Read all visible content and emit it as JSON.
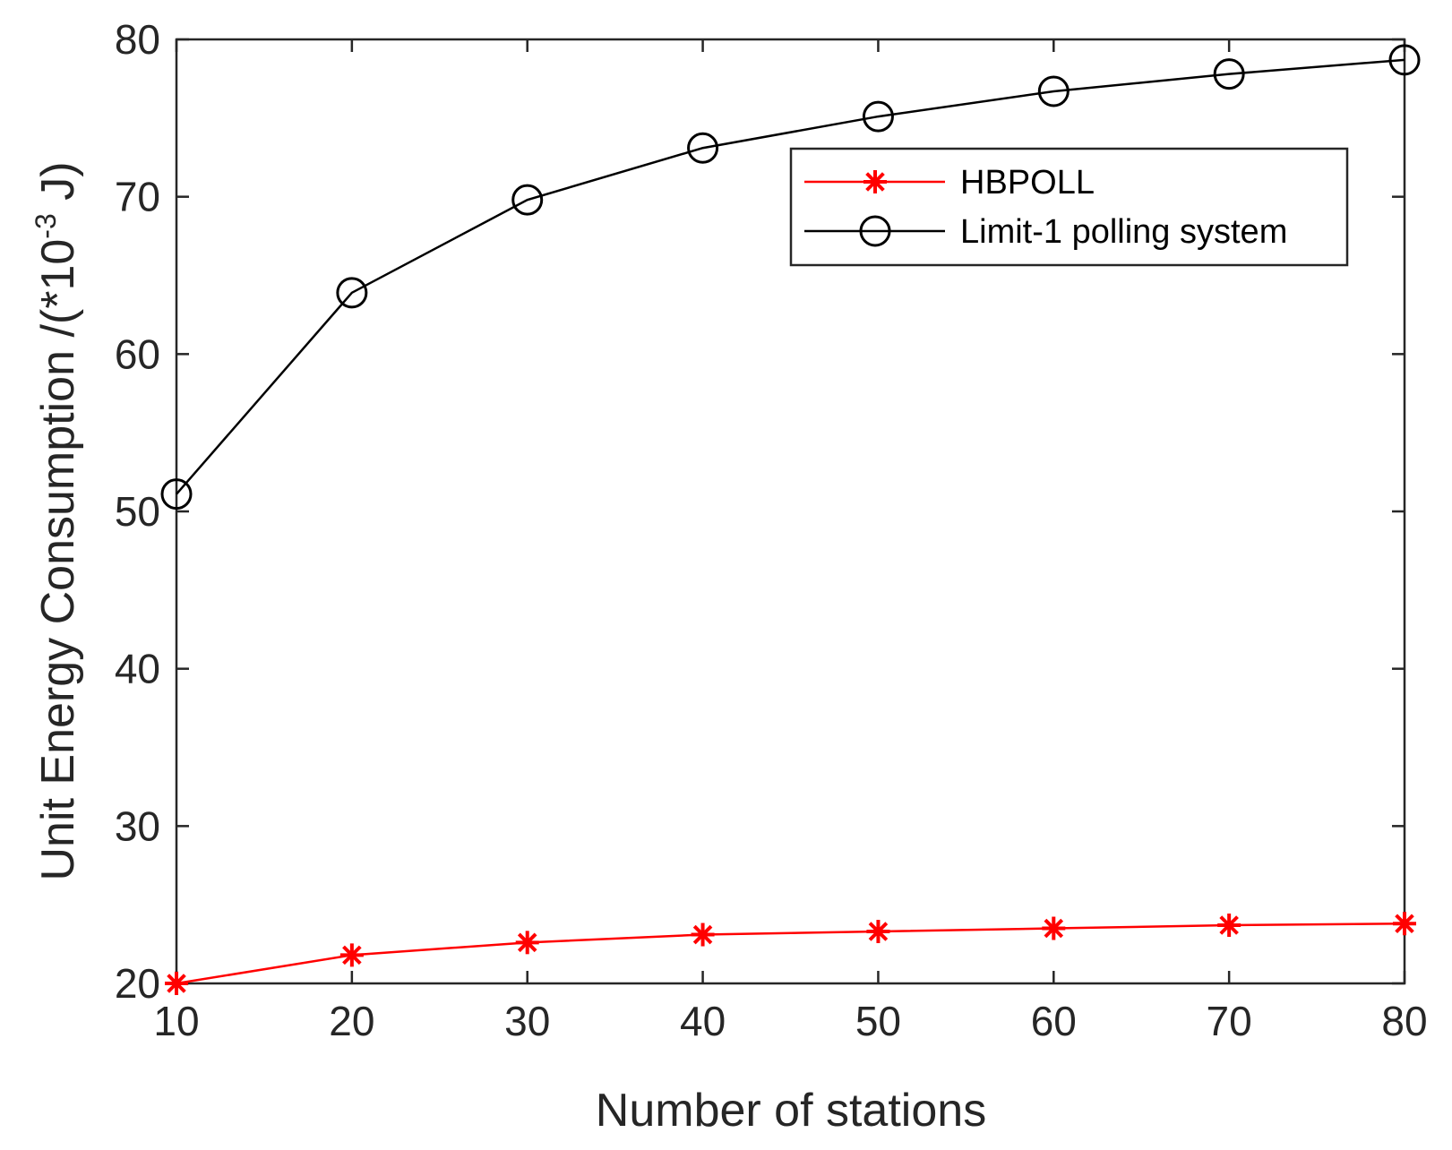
{
  "chart_data": {
    "type": "line",
    "title": "",
    "xlabel": "Number of stations",
    "ylabel_main": "Unit Energy Consumption /(*10",
    "ylabel_exp": "-3",
    "ylabel_tail": " J)",
    "xlim": [
      10,
      80
    ],
    "ylim": [
      20,
      80
    ],
    "xticks": [
      10,
      20,
      30,
      40,
      50,
      60,
      70,
      80
    ],
    "yticks": [
      20,
      30,
      40,
      50,
      60,
      70,
      80
    ],
    "grid": false,
    "legend_position": "upper-right",
    "x": [
      10,
      20,
      30,
      40,
      50,
      60,
      70,
      80
    ],
    "series": [
      {
        "name": "HBPOLL",
        "color": "#ff0000",
        "marker": "asterisk",
        "values": [
          20.0,
          21.8,
          22.6,
          23.1,
          23.3,
          23.5,
          23.7,
          23.8
        ]
      },
      {
        "name": "Limit-1 polling system",
        "color": "#000000",
        "marker": "circle",
        "values": [
          51.1,
          63.9,
          69.8,
          73.1,
          75.1,
          76.7,
          77.8,
          78.7
        ]
      }
    ]
  }
}
